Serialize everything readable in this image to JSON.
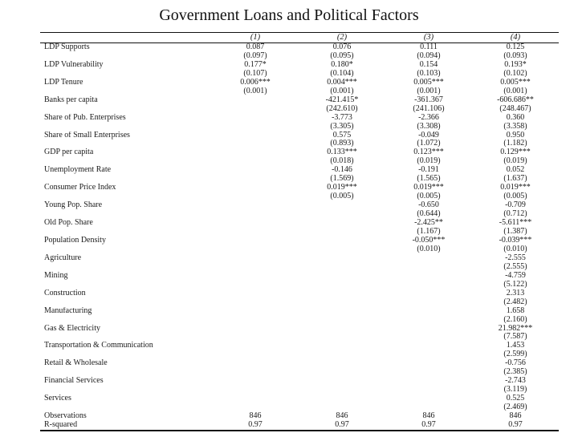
{
  "title": "Government Loans and Political Factors",
  "table": {
    "columns": [
      "(1)",
      "(2)",
      "(3)",
      "(4)"
    ],
    "rows": [
      {
        "label": "LDP Supports",
        "coef": [
          "0.087",
          "0.076",
          "0.111",
          "0.125"
        ],
        "se": [
          "(0.097)",
          "(0.095)",
          "(0.094)",
          "(0.093)"
        ]
      },
      {
        "label": "LDP Vulnerability",
        "coef": [
          "0.177*",
          "0.180*",
          "0.154",
          "0.193*"
        ],
        "se": [
          "(0.107)",
          "(0.104)",
          "(0.103)",
          "(0.102)"
        ]
      },
      {
        "label": "LDP Tenure",
        "coef": [
          "0.006***",
          "0.004***",
          "0.005***",
          "0.005***"
        ],
        "se": [
          "(0.001)",
          "(0.001)",
          "(0.001)",
          "(0.001)"
        ]
      },
      {
        "label": "Banks per capita",
        "coef": [
          "",
          "-421.415*",
          "-361.367",
          "-606.686**"
        ],
        "se": [
          "",
          "(242.610)",
          "(241.106)",
          "(248.467)"
        ]
      },
      {
        "label": "Share of Pub. Enterprises",
        "coef": [
          "",
          "-3.773",
          "-2.366",
          "0.360"
        ],
        "se": [
          "",
          "(3.305)",
          "(3.308)",
          "(3.358)"
        ]
      },
      {
        "label": "Share of Small Enterprises",
        "coef": [
          "",
          "0.575",
          "-0.049",
          "0.950"
        ],
        "se": [
          "",
          "(0.893)",
          "(1.072)",
          "(1.182)"
        ]
      },
      {
        "label": "GDP per capita",
        "coef": [
          "",
          "0.133***",
          "0.123***",
          "0.129***"
        ],
        "se": [
          "",
          "(0.018)",
          "(0.019)",
          "(0.019)"
        ]
      },
      {
        "label": "Unemployment Rate",
        "coef": [
          "",
          "-0.146",
          "-0.191",
          "0.052"
        ],
        "se": [
          "",
          "(1.569)",
          "(1.565)",
          "(1.637)"
        ]
      },
      {
        "label": "Consumer Price Index",
        "coef": [
          "",
          "0.019***",
          "0.019***",
          "0.019***"
        ],
        "se": [
          "",
          "(0.005)",
          "(0.005)",
          "(0.005)"
        ]
      },
      {
        "label": "Young Pop. Share",
        "coef": [
          "",
          "",
          "-0.650",
          "-0.709"
        ],
        "se": [
          "",
          "",
          "(0.644)",
          "(0.712)"
        ]
      },
      {
        "label": "Old Pop. Share",
        "coef": [
          "",
          "",
          "-2.425**",
          "-5.611***"
        ],
        "se": [
          "",
          "",
          "(1.167)",
          "(1.387)"
        ]
      },
      {
        "label": "Population Density",
        "coef": [
          "",
          "",
          "-0.050***",
          "-0.039***"
        ],
        "se": [
          "",
          "",
          "(0.010)",
          "(0.010)"
        ]
      },
      {
        "label": "Agriculture",
        "coef": [
          "",
          "",
          "",
          "-2.555"
        ],
        "se": [
          "",
          "",
          "",
          "(2.555)"
        ]
      },
      {
        "label": "Mining",
        "coef": [
          "",
          "",
          "",
          "-4.759"
        ],
        "se": [
          "",
          "",
          "",
          "(5.122)"
        ]
      },
      {
        "label": "Construction",
        "coef": [
          "",
          "",
          "",
          "2.313"
        ],
        "se": [
          "",
          "",
          "",
          "(2.482)"
        ]
      },
      {
        "label": "Manufacturing",
        "coef": [
          "",
          "",
          "",
          "1.658"
        ],
        "se": [
          "",
          "",
          "",
          "(2.160)"
        ]
      },
      {
        "label": "Gas & Electricity",
        "coef": [
          "",
          "",
          "",
          "21.982***"
        ],
        "se": [
          "",
          "",
          "",
          "(7.587)"
        ]
      },
      {
        "label": "Transportation & Communication",
        "coef": [
          "",
          "",
          "",
          "1.453"
        ],
        "se": [
          "",
          "",
          "",
          "(2.599)"
        ]
      },
      {
        "label": "Retail & Wholesale",
        "coef": [
          "",
          "",
          "",
          "-0.756"
        ],
        "se": [
          "",
          "",
          "",
          "(2.385)"
        ]
      },
      {
        "label": "Financial Services",
        "coef": [
          "",
          "",
          "",
          "-2.743"
        ],
        "se": [
          "",
          "",
          "",
          "(3.119)"
        ]
      },
      {
        "label": "Services",
        "coef": [
          "",
          "",
          "",
          "0.525"
        ],
        "se": [
          "",
          "",
          "",
          "(2.469)"
        ]
      }
    ],
    "stats": [
      {
        "label": "Observations",
        "values": [
          "846",
          "846",
          "846",
          "846"
        ]
      },
      {
        "label": "R-squared",
        "values": [
          "0.97",
          "0.97",
          "0.97",
          "0.97"
        ]
      }
    ]
  }
}
